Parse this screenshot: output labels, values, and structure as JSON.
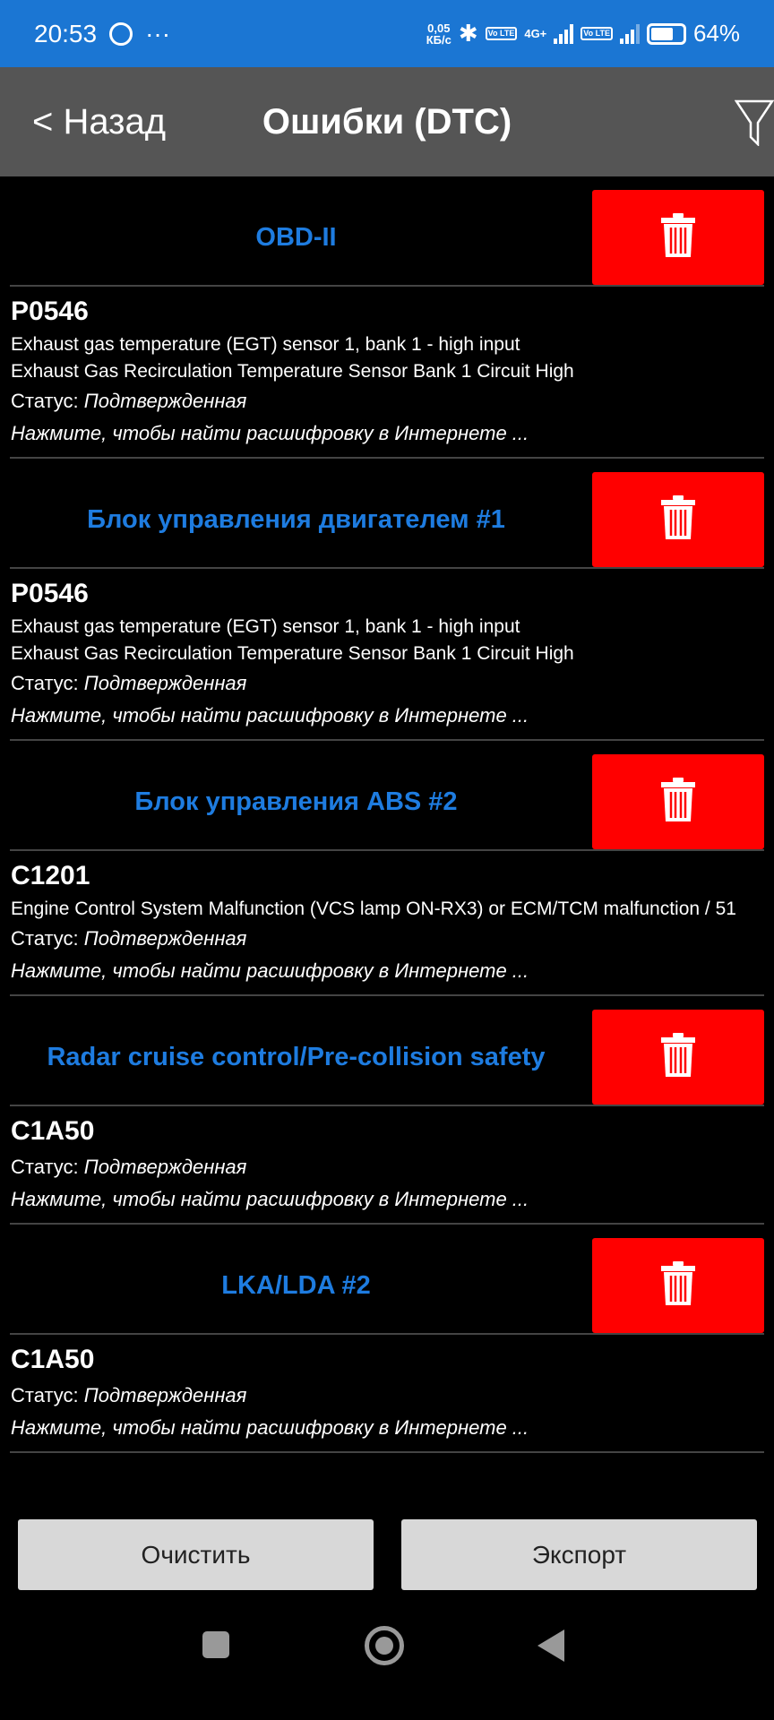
{
  "status_bar": {
    "time": "20:53",
    "net_speed_value": "0,05",
    "net_speed_unit": "КБ/с",
    "network": "4G+",
    "volte": "Vo LTE",
    "battery": "64%",
    "battery_level": 64,
    "bg_color": "#1b76d3"
  },
  "header": {
    "back_label": "< Назад",
    "title": "Ошибки (DTC)",
    "filter_icon": "filter-icon"
  },
  "status_label": "Статус:",
  "sections": [
    {
      "name": "OBD-II",
      "entries": [
        {
          "code": "P0546",
          "desc": [
            "Exhaust gas temperature (EGT) sensor 1, bank 1 - high input",
            "Exhaust Gas Recirculation Temperature Sensor Bank 1 Circuit High"
          ],
          "status": "Подтвержденная",
          "link": "Нажмите, чтобы найти расшифровку в Интернете ..."
        }
      ]
    },
    {
      "name": "Блок управления двигателем #1",
      "entries": [
        {
          "code": "P0546",
          "desc": [
            "Exhaust gas temperature (EGT) sensor 1, bank 1 - high input",
            "Exhaust Gas Recirculation Temperature Sensor Bank 1 Circuit High"
          ],
          "status": "Подтвержденная",
          "link": "Нажмите, чтобы найти расшифровку в Интернете ..."
        }
      ]
    },
    {
      "name": "Блок управления ABS #2",
      "entries": [
        {
          "code": "C1201",
          "desc": [
            "Engine Control System Malfunction (VCS lamp ON-RX3) or ECM/TCM malfunction / 51"
          ],
          "status": "Подтвержденная",
          "link": "Нажмите, чтобы найти расшифровку в Интернете ..."
        }
      ]
    },
    {
      "name": "Radar cruise control/Pre-collision safety",
      "entries": [
        {
          "code": "C1A50",
          "desc": [],
          "status": "Подтвержденная",
          "link": "Нажмите, чтобы найти расшифровку в Интернете ..."
        }
      ]
    },
    {
      "name": "LKA/LDA #2",
      "entries": [
        {
          "code": "C1A50",
          "desc": [],
          "status": "Подтвержденная",
          "link": "Нажмите, чтобы найти расшифровку в Интернете ..."
        }
      ]
    }
  ],
  "colors": {
    "section_title": "#1e7ce0",
    "delete_button": "#ff0000",
    "app_bar": "#555555"
  },
  "footer": {
    "clear_label": "Очистить",
    "export_label": "Экспорт"
  }
}
